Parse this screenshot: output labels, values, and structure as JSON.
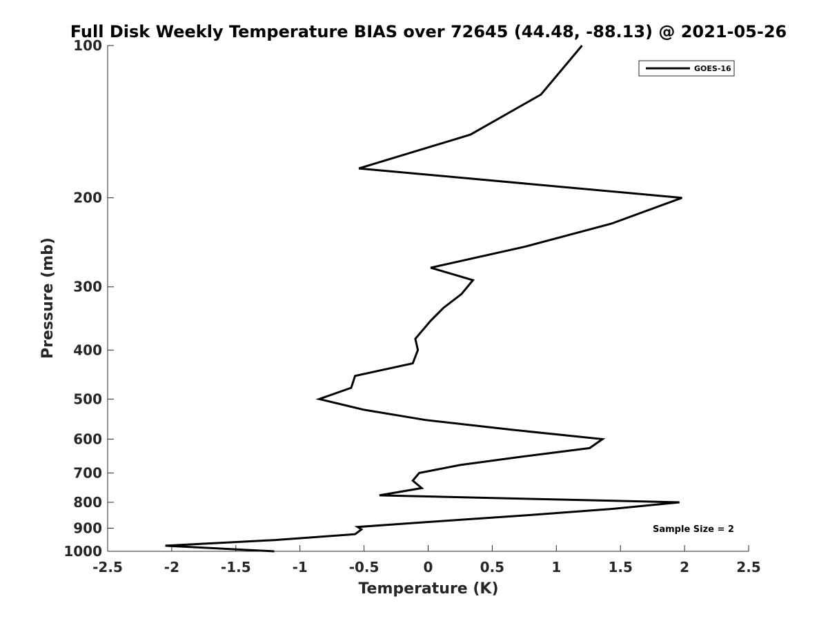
{
  "chart_data": {
    "type": "line",
    "title": "Full Disk Weekly Temperature BIAS over 72645 (44.48, -88.13) @ 2021-05-26",
    "xlabel": "Temperature (K)",
    "ylabel": "Pressure (mb)",
    "xlim": [
      -2.5,
      2.5
    ],
    "ylim": [
      100,
      1000
    ],
    "y_scale": "log",
    "y_reversed": true,
    "xticks": [
      "-2.5",
      "-2",
      "-1.5",
      "-1",
      "-0.5",
      "0",
      "0.5",
      "1",
      "1.5",
      "2",
      "2.5"
    ],
    "yticks": [
      "100",
      "200",
      "300",
      "400",
      "500",
      "600",
      "700",
      "800",
      "900",
      "1000"
    ],
    "grid": false,
    "legend_position": "top-right",
    "annotation": "Sample Size = 2",
    "series": [
      {
        "name": "GOES-16",
        "color": "#000000",
        "points": [
          [
            1.2,
            100
          ],
          [
            0.88,
            125
          ],
          [
            0.33,
            150
          ],
          [
            -0.54,
            175
          ],
          [
            1.98,
            200
          ],
          [
            1.43,
            225
          ],
          [
            0.75,
            250
          ],
          [
            0.02,
            275
          ],
          [
            0.35,
            291
          ],
          [
            0.26,
            310
          ],
          [
            0.12,
            330
          ],
          [
            0.02,
            350
          ],
          [
            -0.1,
            380
          ],
          [
            -0.08,
            400
          ],
          [
            -0.12,
            425
          ],
          [
            -0.57,
            450
          ],
          [
            -0.6,
            475
          ],
          [
            -0.85,
            500
          ],
          [
            -0.5,
            525
          ],
          [
            -0.02,
            550
          ],
          [
            0.65,
            575
          ],
          [
            1.36,
            600
          ],
          [
            1.26,
            625
          ],
          [
            0.73,
            650
          ],
          [
            0.25,
            675
          ],
          [
            -0.07,
            700
          ],
          [
            -0.12,
            725
          ],
          [
            -0.05,
            750
          ],
          [
            -0.38,
            775
          ],
          [
            1.96,
            800
          ],
          [
            1.42,
            825
          ],
          [
            0.73,
            850
          ],
          [
            0.0,
            875
          ],
          [
            -0.55,
            895
          ],
          [
            -0.52,
            905
          ],
          [
            -0.57,
            925
          ],
          [
            -1.2,
            950
          ],
          [
            -2.05,
            975
          ],
          [
            -1.2,
            1000
          ]
        ]
      }
    ]
  }
}
